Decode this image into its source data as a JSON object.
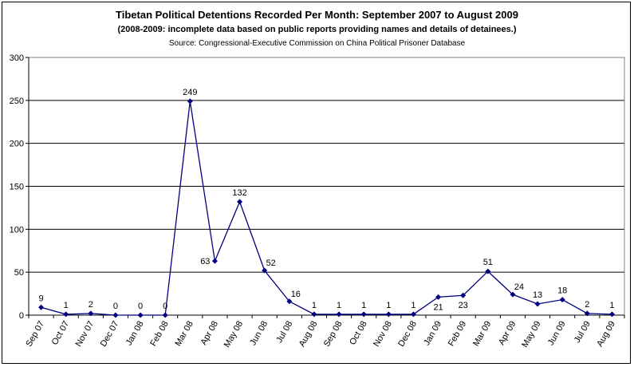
{
  "chart_data": {
    "type": "line",
    "title": "Tibetan Political Detentions Recorded Per Month: September 2007 to August 2009",
    "subtitle": "(2008-2009: incomplete data based on public reports providing names and details of detainees.)",
    "source": "Source: Congressional-Executive Commission on China Political Prisoner Database",
    "xlabel": "",
    "ylabel": "",
    "ylim": [
      0,
      300
    ],
    "yticks": [
      0,
      50,
      100,
      150,
      200,
      250,
      300
    ],
    "grid": true,
    "legend": "none",
    "categories": [
      "Sep 07",
      "Oct 07",
      "Nov 07",
      "Dec 07",
      "Jan 08",
      "Feb 08",
      "Mar 08",
      "Apr 08",
      "May 08",
      "Jun 08",
      "Jul 08",
      "Aug 08",
      "Sep 08",
      "Oct 08",
      "Nov 08",
      "Dec 08",
      "Jan 09",
      "Feb 09",
      "Mar 09",
      "Apr 09",
      "May 09",
      "Jun 09",
      "Jul 09",
      "Aug 09"
    ],
    "series": [
      {
        "values": [
          9,
          1,
          2,
          0,
          0,
          0,
          249,
          63,
          132,
          52,
          16,
          1,
          1,
          1,
          1,
          1,
          21,
          23,
          51,
          24,
          13,
          18,
          2,
          1
        ],
        "color": "#000080"
      }
    ]
  }
}
